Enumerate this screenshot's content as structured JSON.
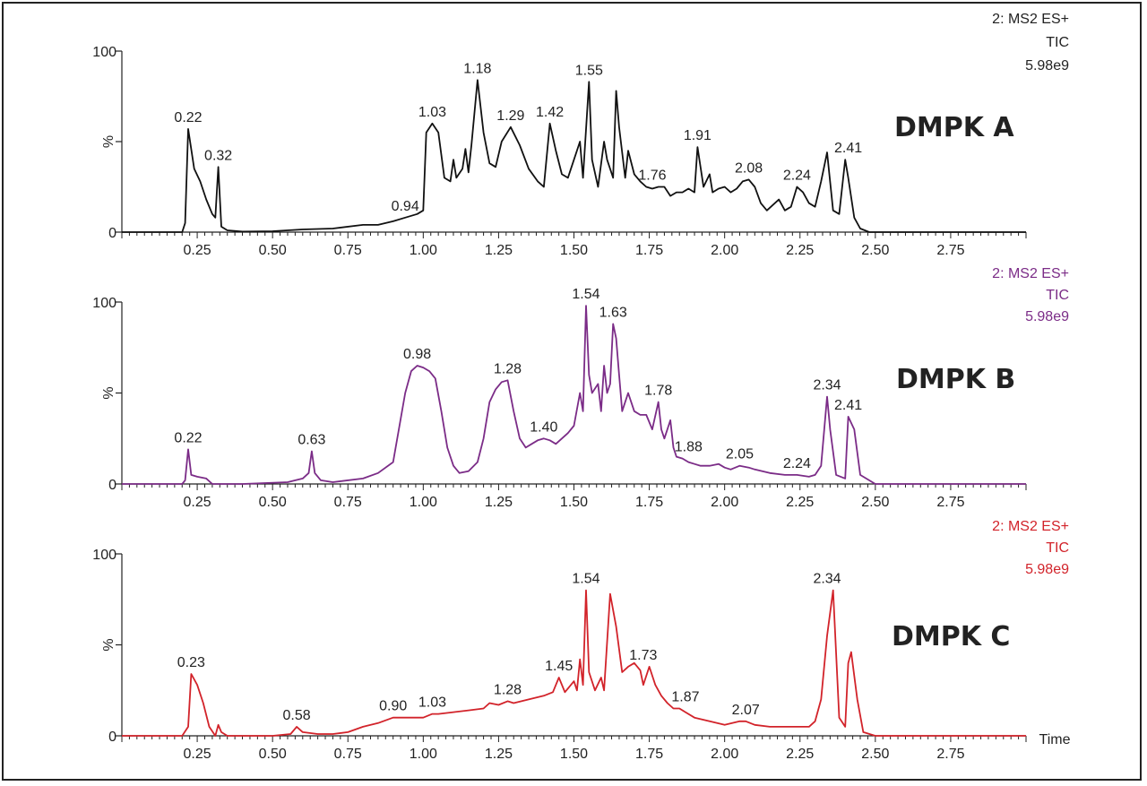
{
  "chart_data": [
    {
      "type": "line",
      "panel_label": "DMPK A",
      "header": [
        "2: MS2 ES+",
        "TIC",
        "5.98e9"
      ],
      "color": "#111111",
      "ylabel": "%",
      "xlabel": "",
      "xlim": [
        0.0,
        3.0
      ],
      "ylim": [
        0,
        100
      ],
      "x_ticks": [
        "0.25",
        "0.50",
        "0.75",
        "1.00",
        "1.25",
        "1.50",
        "1.75",
        "2.00",
        "2.25",
        "2.50",
        "2.75"
      ],
      "y_ticks": [
        "0",
        "%",
        "100"
      ],
      "peak_labels": [
        "0.22",
        "0.32",
        "0.94",
        "1.03",
        "1.18",
        "1.29",
        "1.42",
        "1.55",
        "1.76",
        "1.91",
        "2.08",
        "2.24",
        "2.41"
      ],
      "x": [
        0.0,
        0.2,
        0.21,
        0.22,
        0.24,
        0.26,
        0.28,
        0.3,
        0.31,
        0.32,
        0.33,
        0.35,
        0.4,
        0.5,
        0.6,
        0.7,
        0.8,
        0.85,
        0.9,
        0.94,
        0.98,
        1.0,
        1.01,
        1.03,
        1.05,
        1.07,
        1.09,
        1.1,
        1.11,
        1.13,
        1.14,
        1.15,
        1.16,
        1.18,
        1.2,
        1.22,
        1.24,
        1.26,
        1.29,
        1.32,
        1.35,
        1.38,
        1.4,
        1.42,
        1.44,
        1.46,
        1.48,
        1.5,
        1.52,
        1.53,
        1.55,
        1.56,
        1.58,
        1.6,
        1.61,
        1.63,
        1.64,
        1.65,
        1.67,
        1.68,
        1.7,
        1.72,
        1.74,
        1.76,
        1.78,
        1.8,
        1.82,
        1.84,
        1.86,
        1.88,
        1.9,
        1.91,
        1.93,
        1.95,
        1.96,
        1.98,
        2.0,
        2.02,
        2.04,
        2.06,
        2.08,
        2.1,
        2.12,
        2.14,
        2.16,
        2.18,
        2.2,
        2.22,
        2.24,
        2.26,
        2.28,
        2.3,
        2.32,
        2.34,
        2.36,
        2.38,
        2.4,
        2.41,
        2.43,
        2.45,
        2.48,
        2.5,
        2.6,
        3.0
      ],
      "y": [
        0,
        0,
        5,
        57,
        35,
        28,
        18,
        10,
        8,
        36,
        3,
        1,
        0.3,
        0.5,
        1.5,
        2,
        4,
        4,
        6,
        8,
        10,
        12,
        55,
        60,
        55,
        30,
        28,
        40,
        30,
        35,
        46,
        33,
        48,
        84,
        55,
        38,
        36,
        50,
        58,
        48,
        35,
        28,
        25,
        60,
        45,
        32,
        30,
        40,
        50,
        30,
        83,
        40,
        25,
        50,
        40,
        30,
        78,
        58,
        30,
        45,
        32,
        28,
        25,
        24,
        25,
        25,
        20,
        22,
        22,
        24,
        22,
        47,
        25,
        32,
        22,
        24,
        25,
        22,
        24,
        28,
        29,
        25,
        16,
        12,
        15,
        18,
        12,
        14,
        25,
        22,
        16,
        14,
        28,
        44,
        12,
        10,
        40,
        30,
        8,
        2,
        0,
        0,
        0,
        0
      ]
    },
    {
      "type": "line",
      "panel_label": "DMPK B",
      "header": [
        "2: MS2 ES+",
        "TIC",
        "5.98e9"
      ],
      "color": "#7b2c87",
      "ylabel": "%",
      "xlabel": "",
      "xlim": [
        0.0,
        3.0
      ],
      "ylim": [
        0,
        100
      ],
      "x_ticks": [
        "0.25",
        "0.50",
        "0.75",
        "1.00",
        "1.25",
        "1.50",
        "1.75",
        "2.00",
        "2.25",
        "2.50",
        "2.75"
      ],
      "y_ticks": [
        "0",
        "%",
        "100"
      ],
      "peak_labels": [
        "0.22",
        "0.63",
        "0.98",
        "1.28",
        "1.40",
        "1.54",
        "1.63",
        "1.78",
        "1.88",
        "2.05",
        "2.24",
        "2.34",
        "2.41"
      ],
      "x": [
        0.0,
        0.2,
        0.21,
        0.22,
        0.23,
        0.25,
        0.28,
        0.3,
        0.4,
        0.55,
        0.6,
        0.62,
        0.63,
        0.64,
        0.66,
        0.7,
        0.8,
        0.85,
        0.9,
        0.94,
        0.96,
        0.98,
        1.0,
        1.02,
        1.04,
        1.06,
        1.08,
        1.1,
        1.12,
        1.15,
        1.18,
        1.2,
        1.22,
        1.24,
        1.26,
        1.28,
        1.3,
        1.32,
        1.34,
        1.36,
        1.38,
        1.4,
        1.42,
        1.44,
        1.46,
        1.48,
        1.5,
        1.52,
        1.53,
        1.54,
        1.55,
        1.56,
        1.58,
        1.59,
        1.6,
        1.61,
        1.62,
        1.63,
        1.64,
        1.65,
        1.66,
        1.68,
        1.7,
        1.72,
        1.74,
        1.76,
        1.78,
        1.79,
        1.8,
        1.82,
        1.83,
        1.84,
        1.86,
        1.88,
        1.9,
        1.92,
        1.95,
        1.98,
        2.0,
        2.02,
        2.05,
        2.08,
        2.1,
        2.15,
        2.2,
        2.24,
        2.28,
        2.3,
        2.32,
        2.34,
        2.35,
        2.37,
        2.4,
        2.41,
        2.43,
        2.45,
        2.5,
        3.0
      ],
      "y": [
        0,
        0,
        2,
        19,
        5,
        4,
        3,
        0,
        0,
        1,
        3,
        6,
        18,
        6,
        2,
        1,
        3,
        6,
        12,
        50,
        62,
        65,
        64,
        62,
        58,
        40,
        20,
        10,
        6,
        7,
        12,
        25,
        45,
        52,
        56,
        57,
        40,
        25,
        20,
        22,
        24,
        25,
        24,
        22,
        25,
        28,
        32,
        50,
        40,
        98,
        60,
        50,
        55,
        40,
        65,
        50,
        55,
        88,
        80,
        60,
        40,
        50,
        40,
        38,
        38,
        30,
        45,
        30,
        25,
        35,
        20,
        15,
        14,
        12,
        11,
        10,
        10,
        11,
        9,
        8,
        10,
        9,
        8,
        6,
        5,
        5,
        4,
        5,
        10,
        48,
        30,
        5,
        3,
        37,
        30,
        5,
        0,
        0
      ]
    },
    {
      "type": "line",
      "panel_label": "DMPK C",
      "header": [
        "2: MS2 ES+",
        "TIC",
        "5.98e9"
      ],
      "color": "#d2232a",
      "ylabel": "%",
      "xlabel": "Time",
      "xlim": [
        0.0,
        3.0
      ],
      "ylim": [
        0,
        100
      ],
      "x_ticks": [
        "0.25",
        "0.50",
        "0.75",
        "1.00",
        "1.25",
        "1.50",
        "1.75",
        "2.00",
        "2.25",
        "2.50",
        "2.75"
      ],
      "y_ticks": [
        "0",
        "%",
        "100"
      ],
      "peak_labels": [
        "0.23",
        "0.58",
        "0.90",
        "1.03",
        "1.28",
        "1.45",
        "1.54",
        "1.73",
        "1.87",
        "2.07",
        "2.34"
      ],
      "x": [
        0.0,
        0.2,
        0.22,
        0.23,
        0.25,
        0.27,
        0.29,
        0.31,
        0.32,
        0.33,
        0.35,
        0.4,
        0.5,
        0.56,
        0.58,
        0.6,
        0.65,
        0.7,
        0.75,
        0.8,
        0.85,
        0.9,
        0.95,
        1.0,
        1.03,
        1.05,
        1.1,
        1.15,
        1.2,
        1.22,
        1.25,
        1.28,
        1.3,
        1.35,
        1.4,
        1.43,
        1.45,
        1.47,
        1.49,
        1.5,
        1.51,
        1.52,
        1.53,
        1.54,
        1.55,
        1.57,
        1.59,
        1.6,
        1.62,
        1.64,
        1.66,
        1.68,
        1.7,
        1.72,
        1.73,
        1.75,
        1.77,
        1.79,
        1.81,
        1.83,
        1.85,
        1.87,
        1.9,
        1.95,
        2.0,
        2.05,
        2.07,
        2.1,
        2.15,
        2.2,
        2.25,
        2.28,
        2.3,
        2.32,
        2.34,
        2.36,
        2.38,
        2.4,
        2.41,
        2.42,
        2.44,
        2.46,
        2.5,
        3.0
      ],
      "y": [
        0,
        0,
        5,
        34,
        28,
        18,
        5,
        0,
        6,
        2,
        0,
        0,
        0,
        1,
        5,
        2,
        1,
        1,
        2,
        5,
        7,
        10,
        10,
        10,
        12,
        12,
        13,
        14,
        15,
        18,
        17,
        19,
        18,
        20,
        22,
        24,
        32,
        24,
        28,
        30,
        25,
        42,
        28,
        80,
        35,
        25,
        32,
        25,
        78,
        60,
        35,
        38,
        40,
        36,
        28,
        38,
        28,
        22,
        18,
        15,
        15,
        13,
        10,
        8,
        6,
        8,
        8,
        6,
        5,
        5,
        5,
        5,
        8,
        20,
        55,
        80,
        10,
        5,
        40,
        46,
        20,
        2,
        0,
        0
      ]
    }
  ]
}
